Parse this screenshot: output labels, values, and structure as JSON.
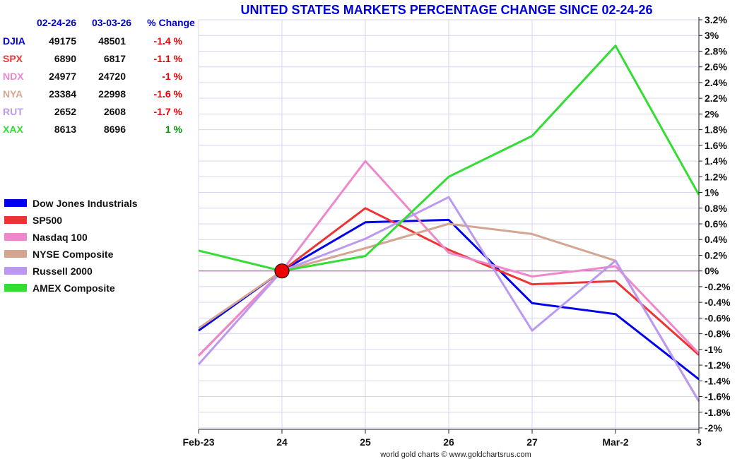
{
  "chart_data": {
    "type": "line",
    "title": "UNITED STATES MARKETS PERCENTAGE CHANGE SINCE 02-24-26",
    "categories": [
      "Feb-23",
      "24",
      "25",
      "26",
      "27",
      "Mar-2",
      "3"
    ],
    "ylim": [
      -2.0,
      3.2
    ],
    "y_ticks": [
      3.2,
      3.0,
      2.8,
      2.6,
      2.4,
      2.2,
      2.0,
      1.8,
      1.6,
      1.4,
      1.2,
      1.0,
      0.8,
      0.6,
      0.4,
      0.2,
      0.0,
      -0.2,
      -0.4,
      -0.6,
      -0.8,
      -1.0,
      -1.2,
      -1.4,
      -1.6,
      -1.8,
      -2.0
    ],
    "y_tick_labels": [
      "3.2%",
      "3%",
      "2.8%",
      "2.6%",
      "2.4%",
      "2.2%",
      "2%",
      "1.8%",
      "1.6%",
      "1.4%",
      "1.2%",
      "1%",
      "0.8%",
      "0.6%",
      "0.4%",
      "0.2%",
      "0%",
      "-0.2%",
      "-0.4%",
      "-0.6%",
      "-0.8%",
      "-1%",
      "-1.2%",
      "-1.4%",
      "-1.6%",
      "-1.8%",
      "-2%"
    ],
    "baseline_marker_category": "24",
    "grid": true,
    "series": [
      {
        "name": "Dow Jones Industrials",
        "color": "#0000ee",
        "values": [
          -0.76,
          0.0,
          0.62,
          0.65,
          -0.41,
          -0.55,
          -1.38
        ]
      },
      {
        "name": "SP500",
        "color": "#ee3333",
        "values": [
          -1.08,
          0.0,
          0.8,
          0.27,
          -0.17,
          -0.13,
          -1.07
        ]
      },
      {
        "name": "Nasdaq 100",
        "color": "#ee88cc",
        "values": [
          -1.08,
          0.0,
          1.4,
          0.23,
          -0.07,
          0.06,
          -1.05
        ]
      },
      {
        "name": "NYSE Composite",
        "color": "#d4a590",
        "values": [
          -0.73,
          0.0,
          0.29,
          0.6,
          0.47,
          0.13,
          -1.66
        ]
      },
      {
        "name": "Russell 2000",
        "color": "#bb99ee",
        "values": [
          -1.19,
          0.0,
          0.41,
          0.94,
          -0.76,
          0.13,
          -1.66
        ]
      },
      {
        "name": "AMEX Composite",
        "color": "#33dd33",
        "values": [
          0.26,
          0.0,
          0.19,
          1.2,
          1.72,
          2.87,
          0.97
        ]
      }
    ],
    "table": {
      "headers": [
        "02-24-26",
        "03-03-26",
        "% Change"
      ],
      "rows": [
        {
          "symbol": "DJIA",
          "symbol_color": "#0000ee",
          "start": "49175",
          "end": "48501",
          "change": "-1.4 %",
          "change_color": "#ee0000"
        },
        {
          "symbol": "SPX",
          "symbol_color": "#ee3333",
          "start": "6890",
          "end": "6817",
          "change": "-1.1 %",
          "change_color": "#ee0000"
        },
        {
          "symbol": "NDX",
          "symbol_color": "#ee88cc",
          "start": "24977",
          "end": "24720",
          "change": "-1 %",
          "change_color": "#ee0000"
        },
        {
          "symbol": "NYA",
          "symbol_color": "#d4a590",
          "start": "23384",
          "end": "22998",
          "change": "-1.6 %",
          "change_color": "#ee0000"
        },
        {
          "symbol": "RUT",
          "symbol_color": "#bb99ee",
          "start": "2652",
          "end": "2608",
          "change": "-1.7 %",
          "change_color": "#ee0000"
        },
        {
          "symbol": "XAX",
          "symbol_color": "#33dd33",
          "start": "8613",
          "end": "8696",
          "change": "1 %",
          "change_color": "#009900"
        }
      ]
    },
    "legend": [
      "Dow Jones Industrials",
      "SP500",
      "Nasdaq 100",
      "NYSE Composite",
      "Russell 2000",
      "AMEX Composite"
    ],
    "legend_position": "left",
    "credit": "world gold charts © www.goldchartsrus.com"
  }
}
